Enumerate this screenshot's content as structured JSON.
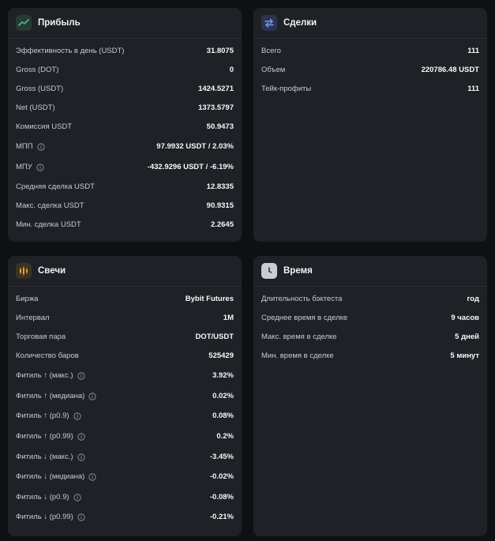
{
  "profit": {
    "title": "Прибыль",
    "rows": [
      {
        "label": "Эффективность в день (USDT)",
        "value": "31.8075"
      },
      {
        "label": "Gross (DOT)",
        "value": "0"
      },
      {
        "label": "Gross (USDT)",
        "value": "1424.5271"
      },
      {
        "label": "Net (USDT)",
        "value": "1373.5797"
      },
      {
        "label": "Комиссия USDT",
        "value": "50.9473"
      },
      {
        "label": "МПП",
        "value": "97.9932 USDT / 2.03%"
      },
      {
        "label": "МПУ",
        "value": "-432.9296 USDT / -6.19%"
      },
      {
        "label": "Средняя сделка USDT",
        "value": "12.8335"
      },
      {
        "label": "Макс. сделка USDT",
        "value": "90.9315"
      },
      {
        "label": "Мин. сделка USDT",
        "value": "2.2645"
      }
    ]
  },
  "deals": {
    "title": "Сделки",
    "rows": [
      {
        "label": "Всего",
        "value": "111"
      },
      {
        "label": "Объем",
        "value": "220786.48 USDT"
      },
      {
        "label": "Тейк-профиты",
        "value": "111"
      }
    ]
  },
  "candles": {
    "title": "Свечи",
    "rows": [
      {
        "label": "Биржа",
        "value": "Bybit Futures"
      },
      {
        "label": "Интервал",
        "value": "1M"
      },
      {
        "label": "Торговая пара",
        "value": "DOT/USDT"
      },
      {
        "label": "Количество баров",
        "value": "525429"
      },
      {
        "label": "Фитиль ↑ (макс.)",
        "value": "3.92%"
      },
      {
        "label": "Фитиль ↑ (медиана)",
        "value": "0.02%"
      },
      {
        "label": "Фитиль ↑ (p0.9)",
        "value": "0.08%"
      },
      {
        "label": "Фитиль ↑ (p0.99)",
        "value": "0.2%"
      },
      {
        "label": "Фитиль ↓ (макс.)",
        "value": "-3.45%"
      },
      {
        "label": "Фитиль ↓ (медиана)",
        "value": "-0.02%"
      },
      {
        "label": "Фитиль ↓ (p0.9)",
        "value": "-0.08%"
      },
      {
        "label": "Фитиль ↓ (p0.99)",
        "value": "-0.21%"
      }
    ]
  },
  "time": {
    "title": "Время",
    "rows": [
      {
        "label": "Длительность бэктеста",
        "value": "год"
      },
      {
        "label": "Среднее время в сделке",
        "value": "9 часов"
      },
      {
        "label": "Макс. время в сделке",
        "value": "5 дней"
      },
      {
        "label": "Мин. время в сделке",
        "value": "5 минут"
      }
    ]
  },
  "colors": {
    "background": "#0f1013",
    "card": "#1f2126",
    "profit_icon": "#3ec28f",
    "deals_icon": "#5b7cf0",
    "candles_icon": "#f0a92e",
    "time_icon_bg": "#c9ccd3"
  },
  "icons": {
    "profit": "trend-line-icon",
    "deals": "swap-arrows-icon",
    "candles": "candlestick-icon",
    "time": "clock-icon",
    "info": "info-icon"
  }
}
